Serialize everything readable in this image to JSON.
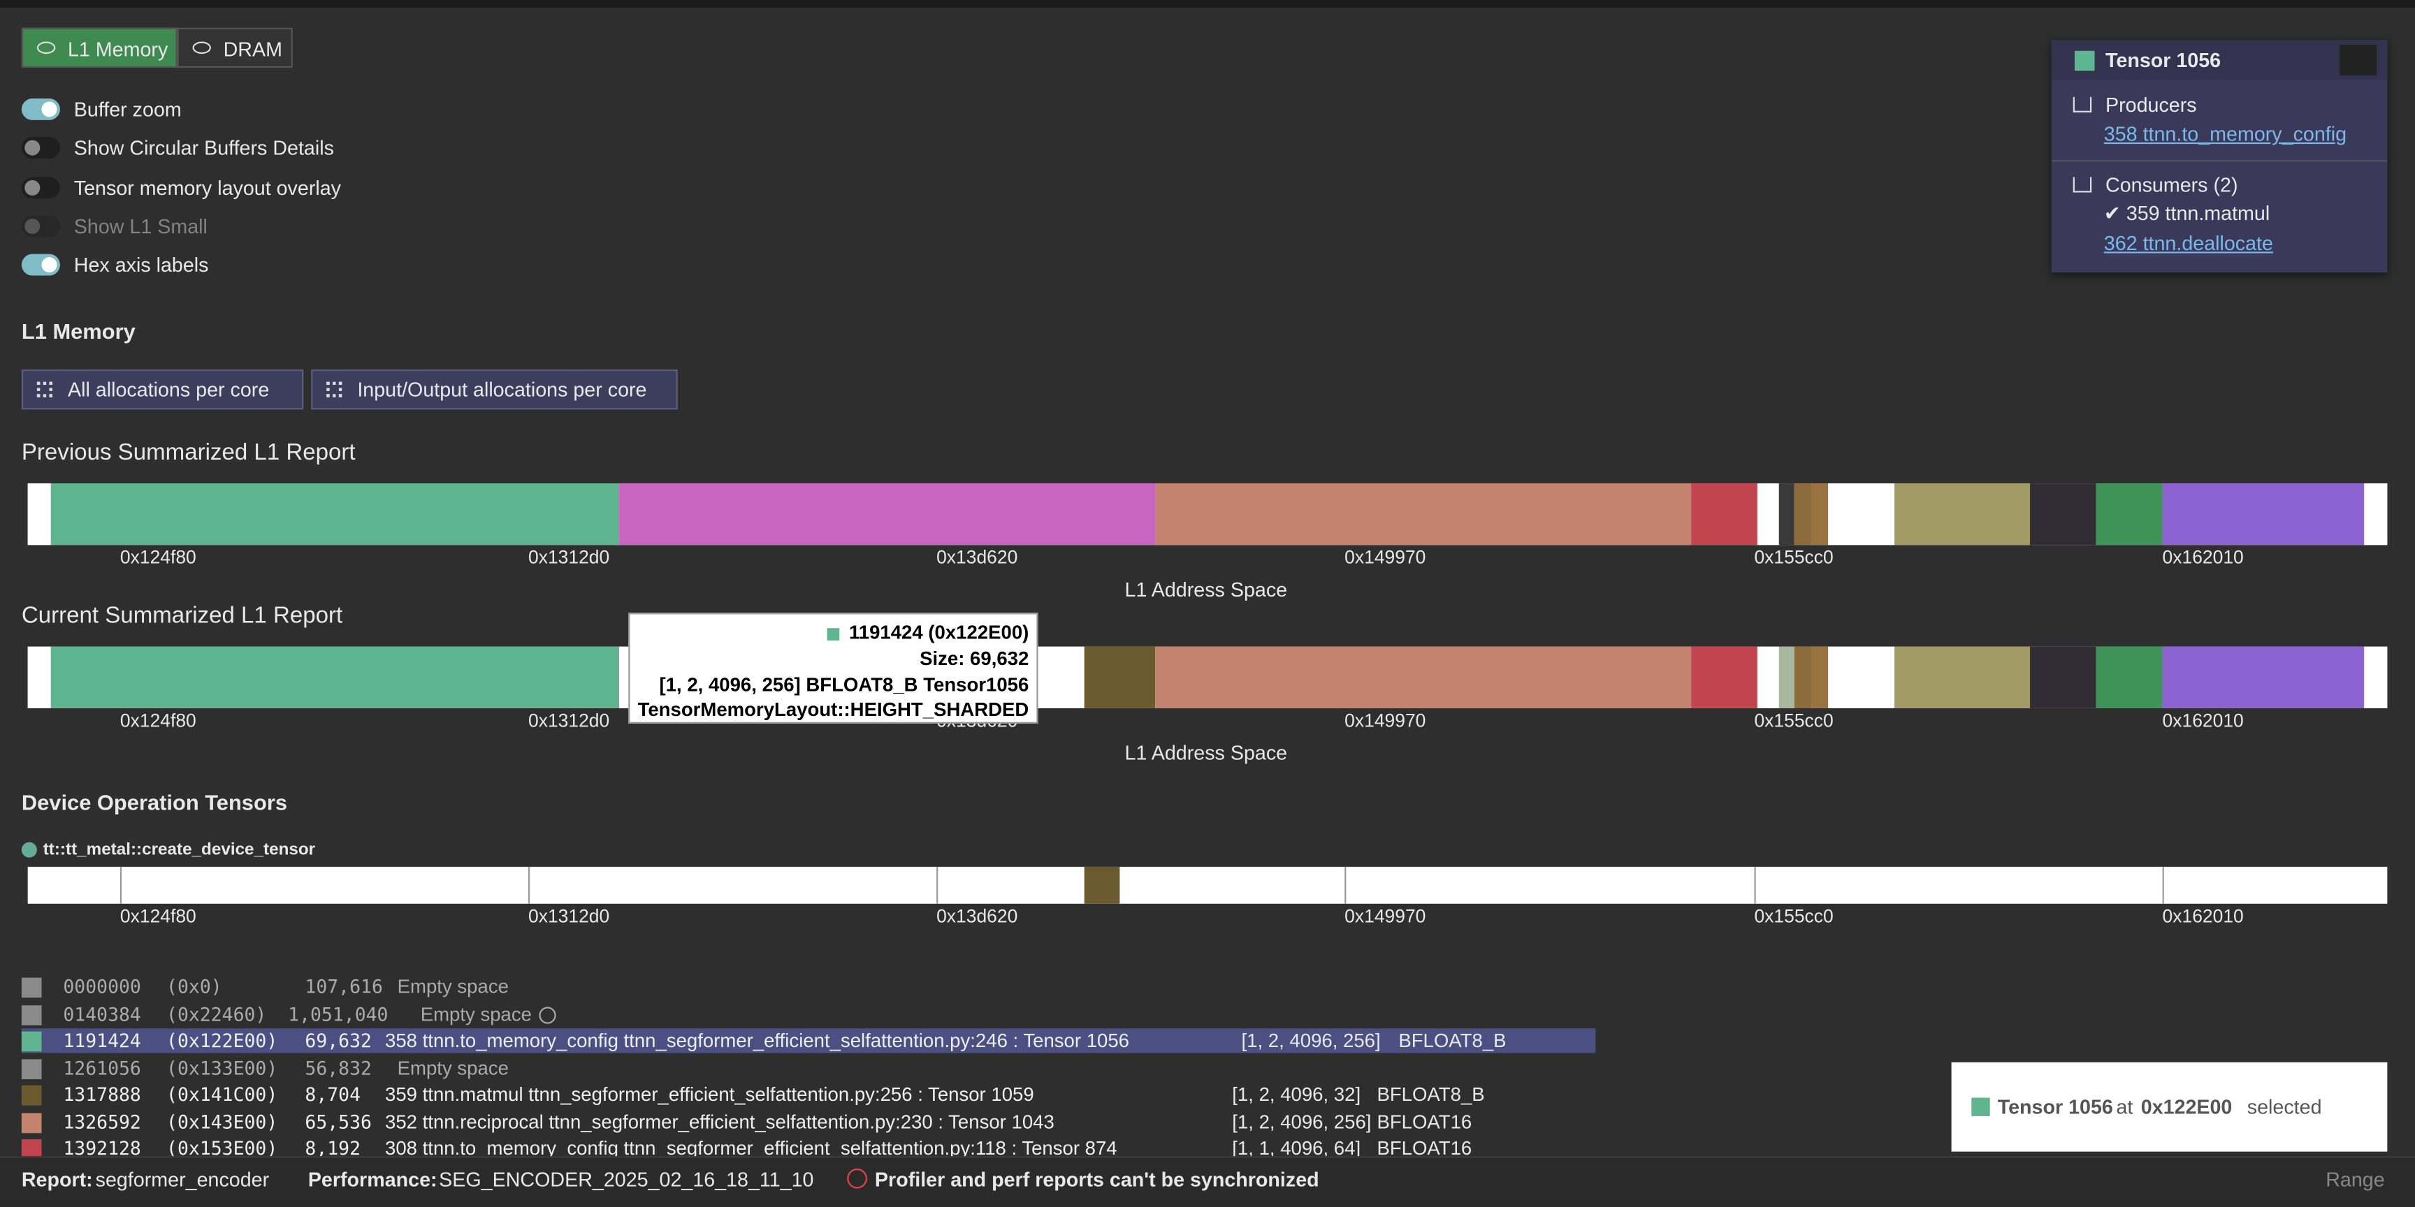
{
  "view_toggle": [
    "L1 Memory",
    "DRAM"
  ],
  "switches": [
    {
      "label": "Buffer zoom",
      "on": true,
      "disabled": false
    },
    {
      "label": "Show Circular Buffers Details",
      "on": false,
      "disabled": false
    },
    {
      "label": "Tensor memory layout overlay",
      "on": false,
      "disabled": false
    },
    {
      "label": "Show L1 Small",
      "on": false,
      "disabled": true
    },
    {
      "label": "Hex axis labels",
      "on": true,
      "disabled": false
    }
  ],
  "section_title": "L1 Memory",
  "buttons": [
    "All allocations per core",
    "Input/Output allocations per core"
  ],
  "reports": [
    {
      "title": "Previous Summarized L1 Report"
    },
    {
      "title": "Current Summarized L1 Report"
    }
  ],
  "axis_ticks": [
    "0x124f80",
    "0x1312d0",
    "0x13d620",
    "0x149970",
    "0x155cc0",
    "0x162010"
  ],
  "axis_label": "L1 Address Space",
  "tooltip": {
    "heading": "1191424 (0x122E00)",
    "lines": [
      "Size: 69,632",
      "[1, 2, 4096, 256] BFLOAT8_B Tensor1056",
      "TensorMemoryLayout::HEIGHT_SHARDED"
    ]
  },
  "device_ops": {
    "title": "Device Operation Tensors",
    "operation": "tt::tt_metal::create_device_tensor"
  },
  "table": {
    "rows": [
      {
        "color": "#8a8a8a",
        "address": "0000000",
        "hex": "(0x0)",
        "size": "107,616",
        "description": "Empty space"
      },
      {
        "color": "#8a8a8a",
        "address": "0140384",
        "hex": "(0x22460)",
        "size": "1,051,040",
        "description": "Empty space"
      },
      {
        "color": "#5eb58f",
        "address": "1191424",
        "hex": "(0x122E00)",
        "size": "69,632",
        "description": "358 ttnn.to_memory_config ttnn_segformer_efficient_selfattention.py:246 : Tensor 1056",
        "shape": "[1, 2, 4096, 256]",
        "dtype": "BFLOAT8_B",
        "selected": true
      },
      {
        "color": "#8a8a8a",
        "address": "1261056",
        "hex": "(0x133E00)",
        "size": "56,832",
        "description": "Empty space"
      },
      {
        "color": "#6b5a2e",
        "address": "1317888",
        "hex": "(0x141C00)",
        "size": "8,704",
        "description": "359 ttnn.matmul ttnn_segformer_efficient_selfattention.py:256 : Tensor 1059",
        "shape": "[1, 2, 4096, 32]",
        "dtype": "BFLOAT8_B"
      },
      {
        "color": "#c4836f",
        "address": "1326592",
        "hex": "(0x143E00)",
        "size": "65,536",
        "description": "352 ttnn.reciprocal ttnn_segformer_efficient_selfattention.py:230 : Tensor 1043",
        "shape": "[1, 2, 4096, 256]",
        "dtype": "BFLOAT16"
      },
      {
        "color": "#c1444f",
        "address": "1392128",
        "hex": "(0x153E00)",
        "size": "8,192",
        "description": "308 ttnn.to_memory_config ttnn_segformer_efficient_selfattention.py:118 : Tensor 874",
        "shape": "[1, 1, 4096, 64]",
        "dtype": "BFLOAT16"
      }
    ]
  },
  "tensor_panel": {
    "title": "Tensor 1056",
    "producers_label": "Producers",
    "producers": [
      "358 ttnn.to_memory_config"
    ],
    "consumers_label": "Consumers (2)",
    "consumers": [
      "✔ 359 ttnn.matmul",
      "362 ttnn.deallocate"
    ]
  },
  "toast": {
    "tensor": "Tensor 1056",
    "at": "at",
    "address": "0x122E00",
    "status": "selected"
  },
  "footer": {
    "report_label": "Report:",
    "report": "segformer_encoder",
    "performance_label": "Performance:",
    "performance": "SEG_ENCODER_2025_02_16_18_11_10",
    "warning": "Profiler and perf reports can't be synchronized",
    "range": "Range"
  }
}
